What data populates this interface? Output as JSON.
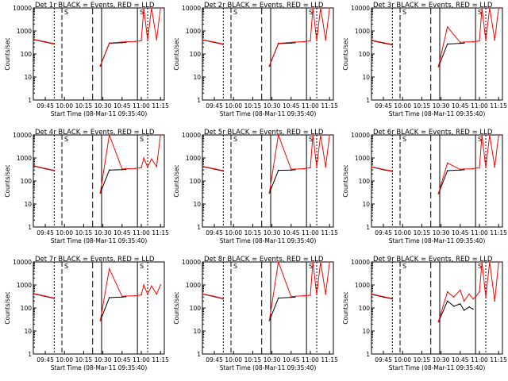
{
  "colors": {
    "events": "#000000",
    "lld": "#ff0000",
    "background": "#ffffff"
  },
  "common": {
    "ylabel": "Counts/sec",
    "xlabel": "Start Time (08-Mar-11 09:35:40)",
    "xticks": [
      "09:45",
      "10:00",
      "10:15",
      "10:30",
      "10:45",
      "11:00",
      "11:15"
    ],
    "yticks": [
      "1",
      "10",
      "100",
      "1000",
      "10000"
    ],
    "markers": [
      "S",
      "S"
    ]
  },
  "chart_data": [
    {
      "type": "line",
      "title": "Det 1r BLACK = Events, RED = LLD",
      "xlabel": "Start Time (08-Mar-11 09:35:40)",
      "ylabel": "Counts/sec",
      "xlim": [
        "09:35:40",
        "11:18"
      ],
      "ylim": [
        1,
        10000
      ],
      "yscale": "log",
      "x": [
        "09:36",
        "09:45",
        "09:52",
        "10:00",
        "10:09",
        "10:25",
        "10:28",
        "10:35",
        "10:45",
        "10:48",
        "10:55",
        "10:57",
        "11:00",
        "11:02",
        "11:05",
        "11:08",
        "11:12",
        "11:15"
      ],
      "series": [
        {
          "name": "Events",
          "color": "#000000",
          "values": [
            420,
            330,
            270,
            null,
            null,
            null,
            30,
            290,
            310,
            320,
            null,
            null,
            null,
            null,
            null,
            null,
            null,
            null
          ]
        },
        {
          "name": "LLD",
          "color": "#ff0000",
          "values": [
            430,
            340,
            280,
            null,
            null,
            null,
            31,
            300,
            330,
            340,
            350,
            360,
            380,
            10000,
            400,
            10000,
            420,
            10000
          ]
        }
      ]
    },
    {
      "type": "line",
      "title": "Det 2r BLACK = Events, RED = LLD",
      "xlabel": "Start Time (08-Mar-11 09:35:40)",
      "ylabel": "Counts/sec",
      "xlim": [
        "09:35:40",
        "11:18"
      ],
      "ylim": [
        1,
        10000
      ],
      "yscale": "log",
      "x": [
        "09:36",
        "09:45",
        "09:52",
        "10:00",
        "10:09",
        "10:25",
        "10:28",
        "10:35",
        "10:45",
        "10:48",
        "10:55",
        "10:57",
        "11:00",
        "11:02",
        "11:05",
        "11:08",
        "11:12",
        "11:15"
      ],
      "series": [
        {
          "name": "Events",
          "color": "#000000",
          "values": [
            400,
            320,
            260,
            null,
            null,
            null,
            30,
            280,
            300,
            310,
            null,
            null,
            null,
            null,
            null,
            null,
            null,
            null
          ]
        },
        {
          "name": "LLD",
          "color": "#ff0000",
          "values": [
            410,
            330,
            270,
            null,
            null,
            null,
            31,
            290,
            320,
            330,
            340,
            360,
            370,
            10000,
            390,
            10000,
            410,
            10000
          ]
        }
      ]
    },
    {
      "type": "line",
      "title": "Det 3r BLACK = Events, RED = LLD",
      "xlabel": "Start Time (08-Mar-11 09:35:40)",
      "ylabel": "Counts/sec",
      "xlim": [
        "09:35:40",
        "11:18"
      ],
      "ylim": [
        1,
        10000
      ],
      "yscale": "log",
      "x": [
        "09:36",
        "09:45",
        "09:52",
        "10:00",
        "10:09",
        "10:25",
        "10:28",
        "10:35",
        "10:45",
        "10:48",
        "10:55",
        "10:57",
        "11:00",
        "11:02",
        "11:05",
        "11:08",
        "11:12",
        "11:15"
      ],
      "series": [
        {
          "name": "Events",
          "color": "#000000",
          "values": [
            380,
            300,
            250,
            null,
            null,
            null,
            28,
            270,
            290,
            300,
            null,
            null,
            null,
            null,
            null,
            null,
            null,
            null
          ]
        },
        {
          "name": "LLD",
          "color": "#ff0000",
          "values": [
            390,
            310,
            260,
            null,
            null,
            null,
            29,
            1500,
            320,
            330,
            340,
            350,
            370,
            10000,
            390,
            10000,
            400,
            10000
          ]
        }
      ]
    },
    {
      "type": "line",
      "title": "Det 4r BLACK = Events, RED = LLD",
      "xlabel": "Start Time (08-Mar-11 09:35:40)",
      "ylabel": "Counts/sec",
      "xlim": [
        "09:35:40",
        "11:18"
      ],
      "ylim": [
        1,
        10000
      ],
      "yscale": "log",
      "x": [
        "09:36",
        "09:45",
        "09:52",
        "10:00",
        "10:09",
        "10:25",
        "10:28",
        "10:35",
        "10:45",
        "10:48",
        "10:55",
        "10:57",
        "11:00",
        "11:02",
        "11:05",
        "11:08",
        "11:12",
        "11:15"
      ],
      "series": [
        {
          "name": "Events",
          "color": "#000000",
          "values": [
            450,
            340,
            280,
            null,
            null,
            null,
            30,
            300,
            310,
            320,
            null,
            null,
            null,
            null,
            null,
            null,
            null,
            null
          ]
        },
        {
          "name": "LLD",
          "color": "#ff0000",
          "values": [
            460,
            350,
            290,
            null,
            null,
            null,
            31,
            10000,
            330,
            340,
            350,
            360,
            380,
            1000,
            400,
            900,
            420,
            10000
          ]
        }
      ]
    },
    {
      "type": "line",
      "title": "Det 5r BLACK = Events, RED = LLD",
      "xlabel": "Start Time (08-Mar-11 09:35:40)",
      "ylabel": "Counts/sec",
      "xlim": [
        "09:35:40",
        "11:18"
      ],
      "ylim": [
        1,
        10000
      ],
      "yscale": "log",
      "x": [
        "09:36",
        "09:45",
        "09:52",
        "10:00",
        "10:09",
        "10:25",
        "10:28",
        "10:35",
        "10:45",
        "10:48",
        "10:55",
        "10:57",
        "11:00",
        "11:02",
        "11:05",
        "11:08",
        "11:12",
        "11:15"
      ],
      "series": [
        {
          "name": "Events",
          "color": "#000000",
          "values": [
            420,
            330,
            270,
            null,
            null,
            null,
            30,
            290,
            300,
            310,
            null,
            null,
            null,
            null,
            null,
            null,
            null,
            null
          ]
        },
        {
          "name": "LLD",
          "color": "#ff0000",
          "values": [
            430,
            340,
            280,
            null,
            null,
            null,
            31,
            10000,
            320,
            330,
            340,
            360,
            380,
            10000,
            400,
            10000,
            410,
            10000
          ]
        }
      ]
    },
    {
      "type": "line",
      "title": "Det 6r BLACK = Events, RED = LLD",
      "xlabel": "Start Time (08-Mar-11 09:35:40)",
      "ylabel": "Counts/sec",
      "xlim": [
        "09:35:40",
        "11:18"
      ],
      "ylim": [
        1,
        10000
      ],
      "yscale": "log",
      "x": [
        "09:36",
        "09:45",
        "09:52",
        "10:00",
        "10:09",
        "10:25",
        "10:28",
        "10:35",
        "10:45",
        "10:48",
        "10:55",
        "10:57",
        "11:00",
        "11:02",
        "11:05",
        "11:08",
        "11:12",
        "11:15"
      ],
      "series": [
        {
          "name": "Events",
          "color": "#000000",
          "values": [
            400,
            310,
            260,
            null,
            null,
            null,
            28,
            280,
            300,
            310,
            null,
            null,
            null,
            null,
            null,
            null,
            null,
            null
          ]
        },
        {
          "name": "LLD",
          "color": "#ff0000",
          "values": [
            410,
            320,
            270,
            null,
            null,
            null,
            29,
            600,
            320,
            330,
            340,
            360,
            370,
            10000,
            380,
            10000,
            400,
            10000
          ]
        }
      ]
    },
    {
      "type": "line",
      "title": "Det 7r BLACK = Events, RED = LLD",
      "xlabel": "Start Time (08-Mar-11 09:35:40)",
      "ylabel": "Counts/sec",
      "xlim": [
        "09:35:40",
        "11:18"
      ],
      "ylim": [
        1,
        10000
      ],
      "yscale": "log",
      "x": [
        "09:36",
        "09:45",
        "09:52",
        "10:00",
        "10:09",
        "10:25",
        "10:28",
        "10:35",
        "10:45",
        "10:48",
        "10:55",
        "10:57",
        "11:00",
        "11:02",
        "11:05",
        "11:08",
        "11:12",
        "11:15"
      ],
      "series": [
        {
          "name": "Events",
          "color": "#000000",
          "values": [
            410,
            320,
            260,
            null,
            null,
            null,
            28,
            280,
            300,
            310,
            null,
            null,
            null,
            null,
            null,
            null,
            null,
            null
          ]
        },
        {
          "name": "LLD",
          "color": "#ff0000",
          "values": [
            420,
            330,
            270,
            null,
            null,
            null,
            29,
            5000,
            320,
            330,
            340,
            350,
            370,
            1000,
            390,
            900,
            400,
            1000
          ]
        }
      ]
    },
    {
      "type": "line",
      "title": "Det 8r BLACK = Events, RED = LLD",
      "xlabel": "Start Time (08-Mar-11 09:35:40)",
      "ylabel": "Counts/sec",
      "xlim": [
        "09:35:40",
        "11:18"
      ],
      "ylim": [
        1,
        10000
      ],
      "yscale": "log",
      "x": [
        "09:36",
        "09:45",
        "09:52",
        "10:00",
        "10:09",
        "10:25",
        "10:28",
        "10:35",
        "10:45",
        "10:48",
        "10:55",
        "10:57",
        "11:00",
        "11:02",
        "11:05",
        "11:08",
        "11:12",
        "11:15"
      ],
      "series": [
        {
          "name": "Events",
          "color": "#000000",
          "values": [
            400,
            310,
            250,
            null,
            null,
            null,
            28,
            270,
            290,
            300,
            null,
            null,
            null,
            null,
            null,
            null,
            null,
            null
          ]
        },
        {
          "name": "LLD",
          "color": "#ff0000",
          "values": [
            410,
            320,
            260,
            null,
            null,
            null,
            29,
            10000,
            310,
            320,
            340,
            350,
            360,
            10000,
            380,
            10000,
            400,
            10000
          ]
        }
      ]
    },
    {
      "type": "line",
      "title": "Det 9r BLACK = Events, RED = LLD",
      "xlabel": "Start Time (08-Mar-11 09:35:40)",
      "ylabel": "Counts/sec",
      "xlim": [
        "09:35:40",
        "11:18"
      ],
      "ylim": [
        1,
        10000
      ],
      "yscale": "log",
      "x": [
        "09:36",
        "09:45",
        "09:52",
        "10:00",
        "10:09",
        "10:25",
        "10:28",
        "10:35",
        "10:40",
        "10:45",
        "10:48",
        "10:52",
        "10:55",
        "10:57",
        "11:00",
        "11:02",
        "11:05",
        "11:08",
        "11:12",
        "11:15"
      ],
      "series": [
        {
          "name": "Events",
          "color": "#000000",
          "values": [
            390,
            300,
            250,
            null,
            null,
            null,
            25,
            200,
            120,
            150,
            80,
            110,
            90,
            null,
            null,
            null,
            null,
            null,
            null,
            null
          ]
        },
        {
          "name": "LLD",
          "color": "#ff0000",
          "values": [
            400,
            310,
            260,
            null,
            null,
            null,
            26,
            500,
            300,
            600,
            200,
            400,
            250,
            300,
            500,
            10000,
            300,
            10000,
            200,
            10000
          ]
        }
      ]
    }
  ]
}
